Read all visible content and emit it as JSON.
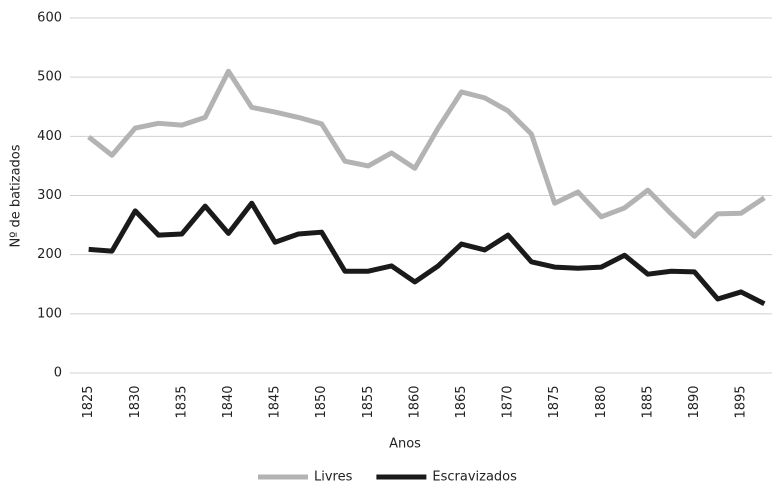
{
  "chart_data": {
    "type": "line",
    "x_label": "Anos",
    "y_label": "Nº de batizados",
    "categories": [
      "1825",
      null,
      "1830",
      null,
      "1835",
      null,
      "1840",
      null,
      "1845",
      null,
      "1850",
      null,
      "1855",
      null,
      "1860",
      null,
      "1865",
      null,
      "1870",
      null,
      "1875",
      null,
      "1880",
      null,
      "1885",
      null,
      "1890",
      null,
      "1895",
      null
    ],
    "series": [
      {
        "name": "Livres",
        "color": "#b3b3b3",
        "values": [
          399,
          368,
          414,
          422,
          419,
          432,
          510,
          449,
          441,
          432,
          421,
          358,
          350,
          372,
          346,
          414,
          475,
          465,
          443,
          404,
          287,
          306,
          264,
          279,
          309,
          269,
          231,
          269,
          270,
          296
        ]
      },
      {
        "name": "Escravizados",
        "color": "#1a1a1a",
        "values": [
          209,
          206,
          274,
          233,
          235,
          282,
          236,
          287,
          221,
          235,
          238,
          172,
          172,
          181,
          154,
          181,
          218,
          208,
          233,
          188,
          179,
          177,
          179,
          199,
          167,
          172,
          171,
          125,
          137,
          117
        ]
      }
    ],
    "ylim": [
      0,
      600
    ],
    "yticks": [
      0,
      100,
      200,
      300,
      400,
      500,
      600
    ],
    "grid": true,
    "legend": "bottom"
  }
}
